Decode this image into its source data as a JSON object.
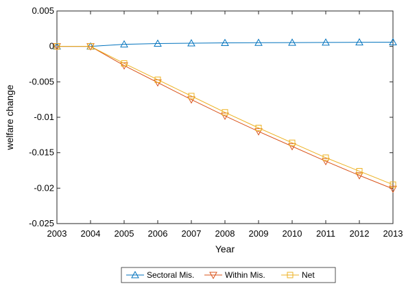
{
  "chart_data": {
    "type": "line",
    "title": "",
    "xlabel": "Year",
    "ylabel": "welfare change",
    "xlim": [
      2003,
      2013
    ],
    "ylim": [
      -0.025,
      0.005
    ],
    "x": [
      2003,
      2004,
      2005,
      2006,
      2007,
      2008,
      2009,
      2010,
      2011,
      2012,
      2013
    ],
    "x_tick_labels": [
      "2003",
      "2004",
      "2005",
      "2006",
      "2007",
      "2008",
      "2009",
      "2010",
      "2011",
      "2012",
      "2013"
    ],
    "y_ticks": [
      0.005,
      0,
      -0.005,
      -0.01,
      -0.015,
      -0.02,
      -0.025
    ],
    "y_tick_labels": [
      "0.005",
      "0",
      "-0.005",
      "-0.01",
      "-0.015",
      "-0.02",
      "-0.025"
    ],
    "grid": false,
    "legend_position": "bottom-outside",
    "series": [
      {
        "name": "Sectoral Mis.",
        "color": "#0072BD",
        "marker": "triangle-up",
        "values": [
          0,
          0,
          0.0003,
          0.0004,
          0.00045,
          0.0005,
          0.00052,
          0.00054,
          0.00056,
          0.00058,
          0.0006
        ]
      },
      {
        "name": "Within Mis.",
        "color": "#D95319",
        "marker": "triangle-down",
        "values": [
          0,
          0,
          -0.0027,
          -0.0051,
          -0.0075,
          -0.0098,
          -0.012,
          -0.0141,
          -0.0162,
          -0.0182,
          -0.0201
        ]
      },
      {
        "name": "Net",
        "color": "#EDB120",
        "marker": "square",
        "values": [
          0,
          0,
          -0.0024,
          -0.0047,
          -0.007,
          -0.0093,
          -0.0115,
          -0.0136,
          -0.0157,
          -0.0176,
          -0.0195
        ]
      }
    ]
  }
}
